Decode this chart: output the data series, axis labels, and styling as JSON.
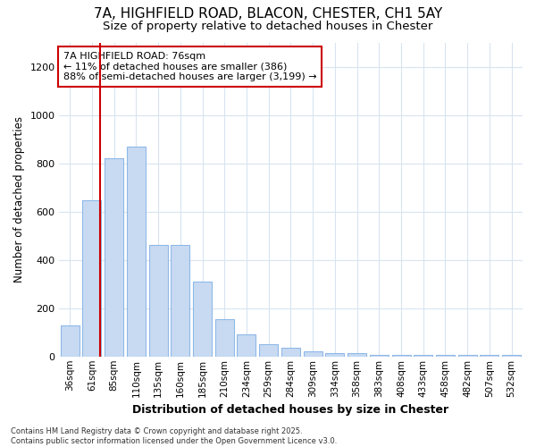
{
  "title_line1": "7A, HIGHFIELD ROAD, BLACON, CHESTER, CH1 5AY",
  "title_line2": "Size of property relative to detached houses in Chester",
  "xlabel": "Distribution of detached houses by size in Chester",
  "ylabel": "Number of detached properties",
  "annotation_title": "7A HIGHFIELD ROAD: 76sqm",
  "annotation_line2": "← 11% of detached houses are smaller (386)",
  "annotation_line3": "88% of semi-detached houses are larger (3,199) →",
  "footer_line1": "Contains HM Land Registry data © Crown copyright and database right 2025.",
  "footer_line2": "Contains public sector information licensed under the Open Government Licence v3.0.",
  "bar_color": "#c8daf2",
  "bar_edge_color": "#8fb8e8",
  "vline_color": "#cc0000",
  "vline_x_index": 1,
  "categories": [
    "36sqm",
    "61sqm",
    "85sqm",
    "110sqm",
    "135sqm",
    "160sqm",
    "185sqm",
    "210sqm",
    "234sqm",
    "259sqm",
    "284sqm",
    "309sqm",
    "334sqm",
    "358sqm",
    "383sqm",
    "408sqm",
    "433sqm",
    "458sqm",
    "482sqm",
    "507sqm",
    "532sqm"
  ],
  "values": [
    130,
    645,
    820,
    870,
    460,
    460,
    310,
    155,
    90,
    50,
    35,
    20,
    15,
    15,
    5,
    5,
    5,
    5,
    5,
    5,
    5
  ],
  "ylim": [
    0,
    1300
  ],
  "yticks": [
    0,
    200,
    400,
    600,
    800,
    1000,
    1200
  ],
  "bg_color": "#ffffff",
  "grid_color": "#d8e4f0",
  "title1_fontsize": 11,
  "title2_fontsize": 9.5
}
